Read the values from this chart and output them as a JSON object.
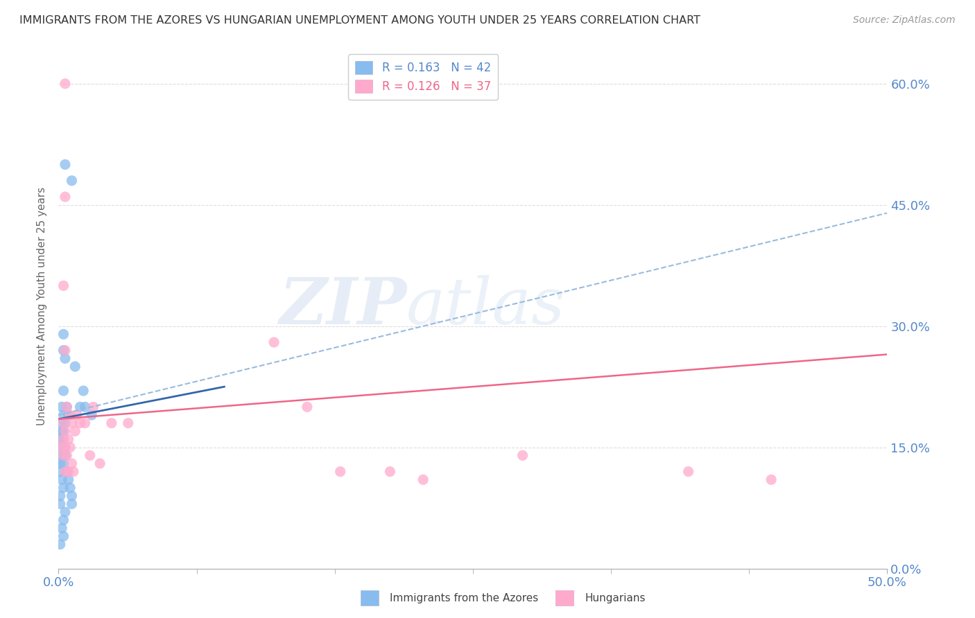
{
  "title": "IMMIGRANTS FROM THE AZORES VS HUNGARIAN UNEMPLOYMENT AMONG YOUTH UNDER 25 YEARS CORRELATION CHART",
  "source": "Source: ZipAtlas.com",
  "xlabel_left": "Immigrants from the Azores",
  "xlabel_right": "Hungarians",
  "ylabel": "Unemployment Among Youth under 25 years",
  "watermark_zip": "ZIP",
  "watermark_atlas": "atlas",
  "legend": [
    {
      "label": "R = 0.163   N = 42",
      "color": "#5588cc"
    },
    {
      "label": "R = 0.126   N = 37",
      "color": "#ee6688"
    }
  ],
  "xlim": [
    0,
    0.5
  ],
  "ylim": [
    0,
    0.65
  ],
  "yticks": [
    0.0,
    0.15,
    0.3,
    0.45,
    0.6
  ],
  "blue_scatter": [
    [
      0.004,
      0.5
    ],
    [
      0.008,
      0.48
    ],
    [
      0.003,
      0.29
    ],
    [
      0.003,
      0.27
    ],
    [
      0.004,
      0.26
    ],
    [
      0.003,
      0.22
    ],
    [
      0.01,
      0.25
    ],
    [
      0.002,
      0.2
    ],
    [
      0.005,
      0.2
    ],
    [
      0.003,
      0.19
    ],
    [
      0.006,
      0.19
    ],
    [
      0.002,
      0.18
    ],
    [
      0.004,
      0.18
    ],
    [
      0.002,
      0.17
    ],
    [
      0.003,
      0.17
    ],
    [
      0.001,
      0.16
    ],
    [
      0.003,
      0.16
    ],
    [
      0.002,
      0.15
    ],
    [
      0.004,
      0.15
    ],
    [
      0.002,
      0.14
    ],
    [
      0.004,
      0.14
    ],
    [
      0.001,
      0.13
    ],
    [
      0.003,
      0.13
    ],
    [
      0.001,
      0.12
    ],
    [
      0.005,
      0.12
    ],
    [
      0.002,
      0.11
    ],
    [
      0.006,
      0.11
    ],
    [
      0.003,
      0.1
    ],
    [
      0.007,
      0.1
    ],
    [
      0.001,
      0.09
    ],
    [
      0.008,
      0.09
    ],
    [
      0.001,
      0.08
    ],
    [
      0.008,
      0.08
    ],
    [
      0.013,
      0.2
    ],
    [
      0.016,
      0.2
    ],
    [
      0.02,
      0.19
    ],
    [
      0.015,
      0.22
    ],
    [
      0.003,
      0.06
    ],
    [
      0.004,
      0.07
    ],
    [
      0.002,
      0.05
    ],
    [
      0.003,
      0.04
    ],
    [
      0.001,
      0.03
    ]
  ],
  "pink_scatter": [
    [
      0.004,
      0.6
    ],
    [
      0.004,
      0.46
    ],
    [
      0.003,
      0.35
    ],
    [
      0.004,
      0.27
    ],
    [
      0.005,
      0.2
    ],
    [
      0.007,
      0.19
    ],
    [
      0.003,
      0.18
    ],
    [
      0.008,
      0.18
    ],
    [
      0.004,
      0.17
    ],
    [
      0.01,
      0.17
    ],
    [
      0.003,
      0.16
    ],
    [
      0.006,
      0.16
    ],
    [
      0.002,
      0.15
    ],
    [
      0.004,
      0.15
    ],
    [
      0.007,
      0.15
    ],
    [
      0.003,
      0.14
    ],
    [
      0.005,
      0.14
    ],
    [
      0.008,
      0.13
    ],
    [
      0.004,
      0.12
    ],
    [
      0.006,
      0.12
    ],
    [
      0.009,
      0.12
    ],
    [
      0.011,
      0.19
    ],
    [
      0.013,
      0.18
    ],
    [
      0.016,
      0.18
    ],
    [
      0.019,
      0.14
    ],
    [
      0.021,
      0.2
    ],
    [
      0.025,
      0.13
    ],
    [
      0.032,
      0.18
    ],
    [
      0.042,
      0.18
    ],
    [
      0.13,
      0.28
    ],
    [
      0.15,
      0.2
    ],
    [
      0.2,
      0.12
    ],
    [
      0.28,
      0.14
    ],
    [
      0.38,
      0.12
    ],
    [
      0.43,
      0.11
    ],
    [
      0.17,
      0.12
    ],
    [
      0.22,
      0.11
    ]
  ],
  "blue_line_dashed": {
    "x": [
      0.0,
      0.5
    ],
    "y": [
      0.19,
      0.44
    ]
  },
  "blue_line_solid": {
    "x": [
      0.0,
      0.1
    ],
    "y": [
      0.185,
      0.225
    ]
  },
  "pink_line": {
    "x": [
      0.0,
      0.5
    ],
    "y": [
      0.185,
      0.265
    ]
  },
  "scatter_color_blue": "#88bbee",
  "scatter_color_pink": "#ffaacc",
  "line_color_blue_dashed": "#99bbdd",
  "line_color_blue_solid": "#3366aa",
  "line_color_pink": "#ee6688",
  "grid_color": "#dddddd",
  "axis_label_color": "#5588cc",
  "title_color": "#333333",
  "background_color": "#ffffff"
}
